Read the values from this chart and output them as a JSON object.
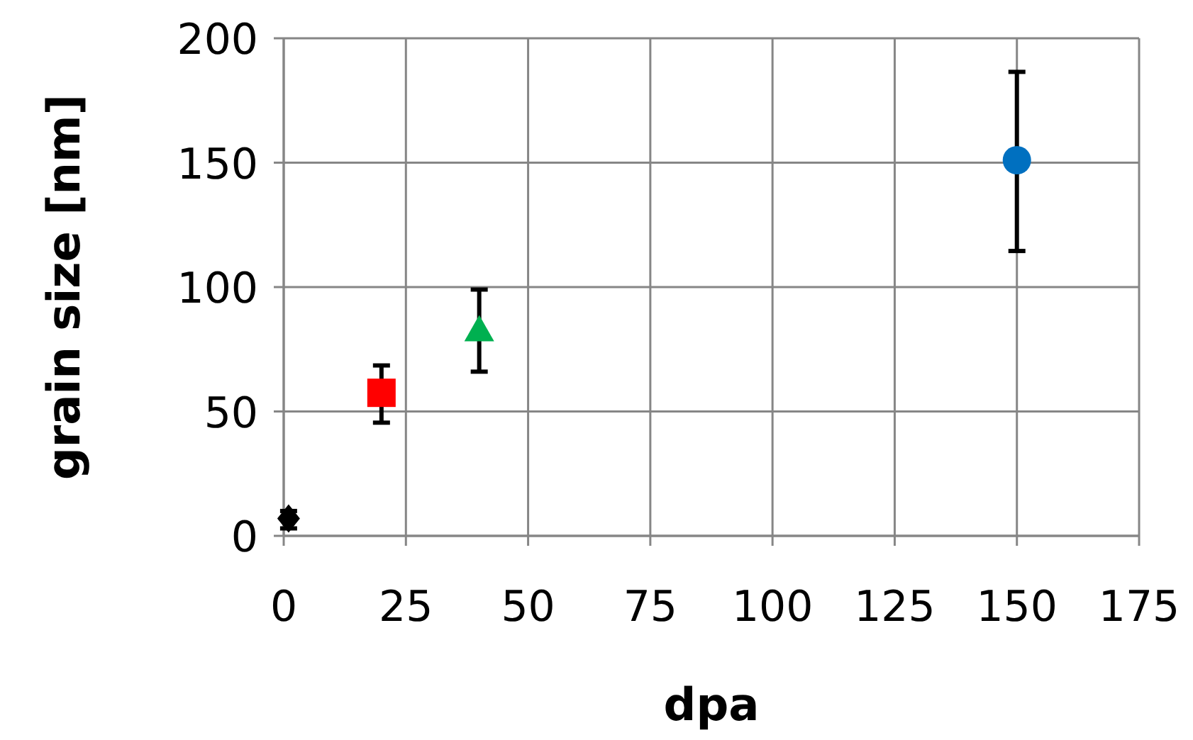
{
  "chart_data": {
    "type": "scatter",
    "xlabel": "dpa",
    "ylabel": "grain size [nm]",
    "xlim": [
      0,
      175
    ],
    "ylim": [
      0,
      200
    ],
    "xticks": [
      0,
      25,
      50,
      75,
      100,
      125,
      150,
      175
    ],
    "yticks": [
      0,
      50,
      100,
      150,
      200
    ],
    "grid": true,
    "series": [
      {
        "color": "#000000",
        "marker": "diamond",
        "x": [
          1
        ],
        "values": [
          7
        ],
        "errors": [
          [
            3,
            10
          ]
        ]
      },
      {
        "color": "#ff0000",
        "marker": "square",
        "x": [
          20
        ],
        "values": [
          57.5
        ],
        "errors": [
          [
            45.5,
            68.5
          ]
        ]
      },
      {
        "color": "#00b050",
        "marker": "triangle",
        "x": [
          40
        ],
        "values": [
          82.5
        ],
        "errors": [
          [
            66,
            99
          ]
        ]
      },
      {
        "color": "#0070c0",
        "marker": "circle",
        "x": [
          150
        ],
        "values": [
          151
        ],
        "errors": [
          [
            114.5,
            186.5
          ]
        ]
      }
    ]
  }
}
